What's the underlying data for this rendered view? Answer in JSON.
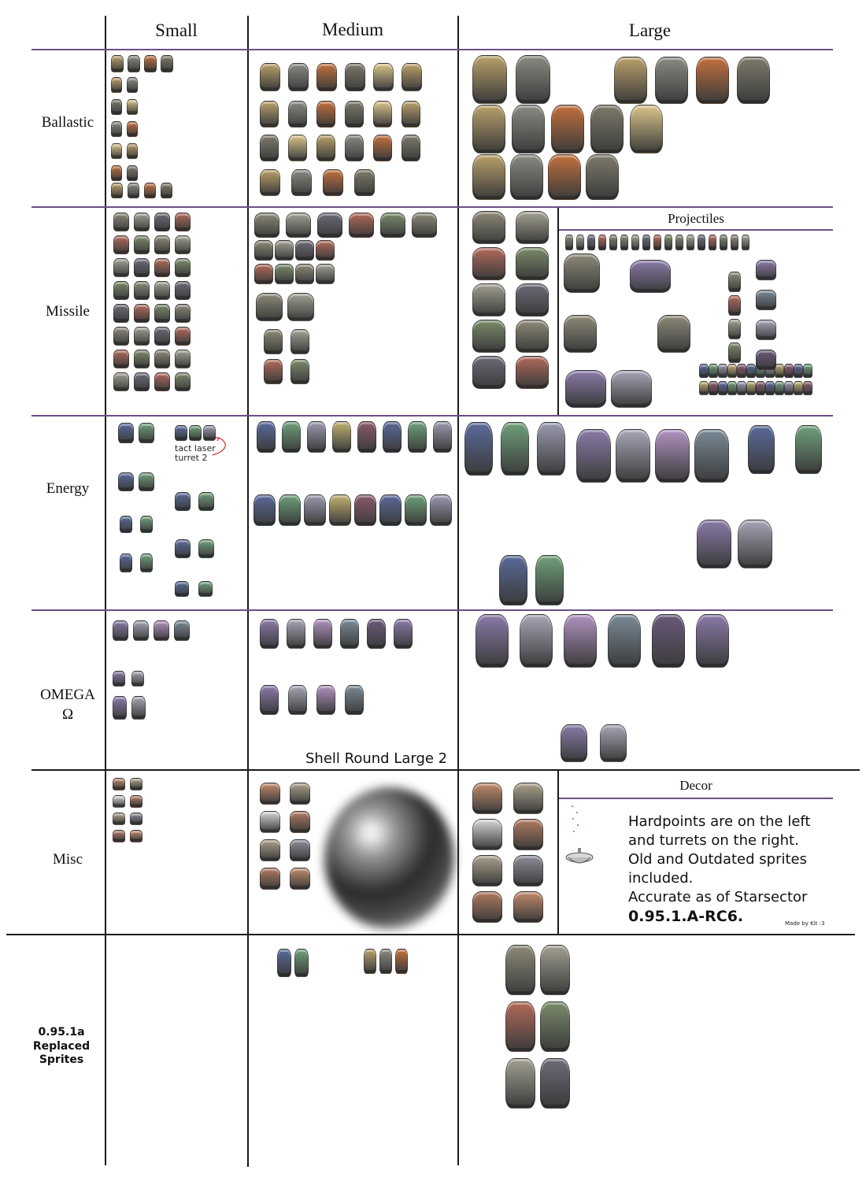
{
  "columns": [
    "Small",
    "Medium",
    "Large"
  ],
  "rows": [
    {
      "label": "Ballastic"
    },
    {
      "label": "Missile"
    },
    {
      "label": "Energy"
    },
    {
      "label": "OMEGA\nΩ"
    },
    {
      "label": "Misc"
    },
    {
      "label": "0.95.1a\nReplaced\nSprites"
    }
  ],
  "subpanels": {
    "projectiles": "Projectiles",
    "decor": "Decor"
  },
  "annotations": {
    "tact_laser": "tact laser\nturret 2",
    "shell_round": "Shell Round Large 2"
  },
  "notes": {
    "line1": "Hardpoints are on the left",
    "line2": "and turrets on the right.",
    "line3": "Old and Outdated sprites",
    "line4": "included.",
    "line5": "Accurate as of Starsector",
    "version": "0.95.1.A-RC6.",
    "made_by": "Made by Kit :3"
  },
  "palette": {
    "ballistic": [
      "#b9a06a",
      "#8a8a82",
      "#c2703c",
      "#7d7a6a",
      "#d9c48a"
    ],
    "missile": [
      "#8d8a78",
      "#a2a092",
      "#6b6b77",
      "#b26a5a",
      "#7b8a6a"
    ],
    "energy": [
      "#5a6a9a",
      "#6fa07a",
      "#9a9ab0",
      "#c0b070",
      "#8a5a6a"
    ],
    "omega": [
      "#8a7aa8",
      "#a6a6b6",
      "#b092c0",
      "#7a8a96",
      "#6a5a7a"
    ],
    "misc": [
      "#c0896a",
      "#a9a08a",
      "#8c8c98",
      "#d6d6d6",
      "#b07a60"
    ]
  }
}
